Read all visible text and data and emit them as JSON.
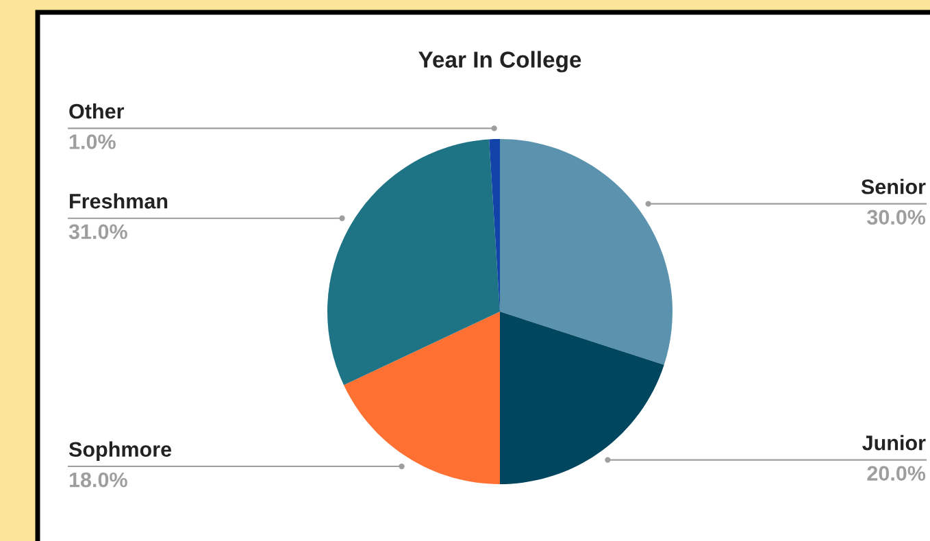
{
  "chart_data": {
    "type": "pie",
    "title": "Year In College",
    "categories": [
      "Senior",
      "Junior",
      "Sophmore",
      "Freshman",
      "Other"
    ],
    "values": [
      30,
      20,
      18,
      31,
      1
    ],
    "colors": [
      "#5b92ae",
      "#01465f",
      "#ff7033",
      "#1e7485",
      "#1243a8"
    ],
    "value_labels": [
      "30.0%",
      "20.0%",
      "18.0%",
      "31.0%",
      "1.0%"
    ]
  }
}
